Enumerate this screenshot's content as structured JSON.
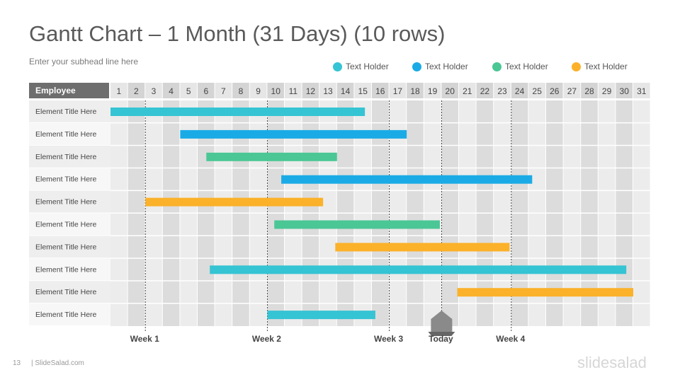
{
  "slide": {
    "title": "Gantt Chart – 1 Month (31 Days) (10 rows)",
    "subtitle": "Enter your subhead  line here",
    "page_number": "13",
    "footer_text": "| SlideSalad.com",
    "logo_text": "slidesalad"
  },
  "legend": [
    {
      "label": "Text Holder",
      "color": "#35c4d3"
    },
    {
      "label": "Text Holder",
      "color": "#1aabe6"
    },
    {
      "label": "Text Holder",
      "color": "#4bc695"
    },
    {
      "label": "Text Holder",
      "color": "#fbb129"
    }
  ],
  "chart_data": {
    "type": "gantt",
    "header_label": "Employee",
    "days": [
      1,
      2,
      3,
      4,
      5,
      6,
      7,
      8,
      9,
      10,
      11,
      12,
      13,
      14,
      15,
      16,
      17,
      18,
      19,
      20,
      21,
      22,
      23,
      24,
      25,
      26,
      27,
      28,
      29,
      30,
      31
    ],
    "rows": [
      {
        "label": "Element Title Here",
        "start": 1,
        "end": 15.6,
        "color": "#35c4d3"
      },
      {
        "label": "Element Title Here",
        "start": 5,
        "end": 18,
        "color": "#1aabe6"
      },
      {
        "label": "Element Title Here",
        "start": 6.5,
        "end": 14,
        "color": "#4bc695"
      },
      {
        "label": "Element Title Here",
        "start": 10.8,
        "end": 25.2,
        "color": "#1aabe6"
      },
      {
        "label": "Element Title Here",
        "start": 3,
        "end": 13.2,
        "color": "#fbb129"
      },
      {
        "label": "Element Title Here",
        "start": 10.4,
        "end": 19.9,
        "color": "#4bc695"
      },
      {
        "label": "Element Title Here",
        "start": 13.9,
        "end": 23.9,
        "color": "#fbb129"
      },
      {
        "label": "Element Title Here",
        "start": 6.7,
        "end": 30.6,
        "color": "#35c4d3"
      },
      {
        "label": "Element Title Here",
        "start": 20.9,
        "end": 31,
        "color": "#fbb129"
      },
      {
        "label": "Element Title Here",
        "start": 10,
        "end": 16.2,
        "color": "#35c4d3"
      }
    ],
    "markers": [
      {
        "label": "Week 1",
        "day": 2
      },
      {
        "label": "Week 2",
        "day": 9
      },
      {
        "label": "Week 3",
        "day": 16
      },
      {
        "label": "Today",
        "day": 19
      },
      {
        "label": "Week 4",
        "day": 23
      }
    ],
    "today_day": 19
  }
}
